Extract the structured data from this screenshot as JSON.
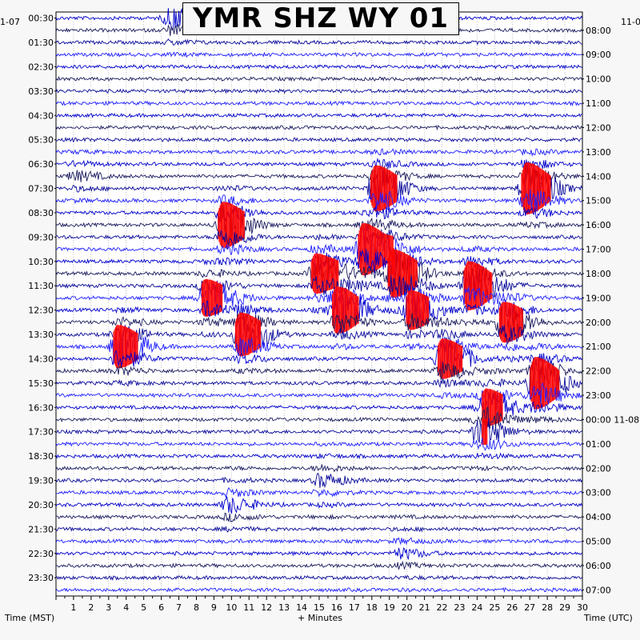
{
  "chart_data": {
    "type": "heliplot",
    "title": "YMR SHZ WY 01",
    "corner_left_date": "1-07",
    "corner_right_date": "11-0",
    "left_axis_label": "Time (MST)",
    "right_axis_label": "Time (UTC)",
    "x_axis_label": "+ Minutes",
    "x_ticks": [
      "1",
      "2",
      "3",
      "4",
      "5",
      "6",
      "7",
      "8",
      "9",
      "10",
      "11",
      "12",
      "13",
      "14",
      "15",
      "16",
      "17",
      "18",
      "19",
      "20",
      "21",
      "22",
      "23",
      "24",
      "25",
      "26",
      "27",
      "28",
      "29",
      "30"
    ],
    "xlim": [
      0,
      30
    ],
    "left_times": [
      "00:30",
      "01:30",
      "02:30",
      "03:30",
      "04:30",
      "05:30",
      "06:30",
      "07:30",
      "08:30",
      "09:30",
      "10:30",
      "11:30",
      "12:30",
      "13:30",
      "14:30",
      "15:30",
      "16:30",
      "17:30",
      "18:30",
      "19:30",
      "20:30",
      "21:30",
      "22:30",
      "23:30"
    ],
    "right_times": [
      "08:00",
      "09:00",
      "10:00",
      "11:00",
      "12:00",
      "13:00",
      "14:00",
      "15:00",
      "16:00",
      "17:00",
      "18:00",
      "19:00",
      "20:00",
      "21:00",
      "22:00",
      "23:00",
      "00:00 11-08",
      "01:00",
      "02:00",
      "03:00",
      "04:00",
      "05:00",
      "06:00",
      "07:00"
    ],
    "trace_count": 48,
    "trace_colors": [
      "#0000cc",
      "#1a1a5e",
      "#0a0a9a",
      "#1f1fff"
    ],
    "clip_color": "#ff0000",
    "grid": true,
    "events": [
      {
        "minute": 6.5,
        "trace": 0,
        "amp": 14
      },
      {
        "minute": 1.0,
        "trace": 13,
        "amp": 6
      },
      {
        "minute": 3.5,
        "trace": 27,
        "amp": 28
      },
      {
        "minute": 8.5,
        "trace": 23,
        "amp": 24
      },
      {
        "minute": 9.5,
        "trace": 17,
        "amp": 30
      },
      {
        "minute": 10.5,
        "trace": 26,
        "amp": 28
      },
      {
        "minute": 14.8,
        "trace": 21,
        "amp": 26
      },
      {
        "minute": 16.0,
        "trace": 24,
        "amp": 30
      },
      {
        "minute": 17.5,
        "trace": 19,
        "amp": 34
      },
      {
        "minute": 18.2,
        "trace": 14,
        "amp": 30
      },
      {
        "minute": 19.2,
        "trace": 21,
        "amp": 30
      },
      {
        "minute": 20.2,
        "trace": 24,
        "amp": 24
      },
      {
        "minute": 22.0,
        "trace": 28,
        "amp": 26
      },
      {
        "minute": 23.5,
        "trace": 22,
        "amp": 32
      },
      {
        "minute": 24.5,
        "trace": 32,
        "amp": 22
      },
      {
        "minute": 25.5,
        "trace": 25,
        "amp": 26
      },
      {
        "minute": 26.8,
        "trace": 14,
        "amp": 34
      },
      {
        "minute": 27.3,
        "trace": 30,
        "amp": 34
      },
      {
        "minute": 9.8,
        "trace": 40,
        "amp": 10
      },
      {
        "minute": 15.0,
        "trace": 38,
        "amp": 8
      },
      {
        "minute": 19.5,
        "trace": 44,
        "amp": 6
      },
      {
        "minute": 24.0,
        "trace": 34,
        "amp": 14
      }
    ]
  }
}
